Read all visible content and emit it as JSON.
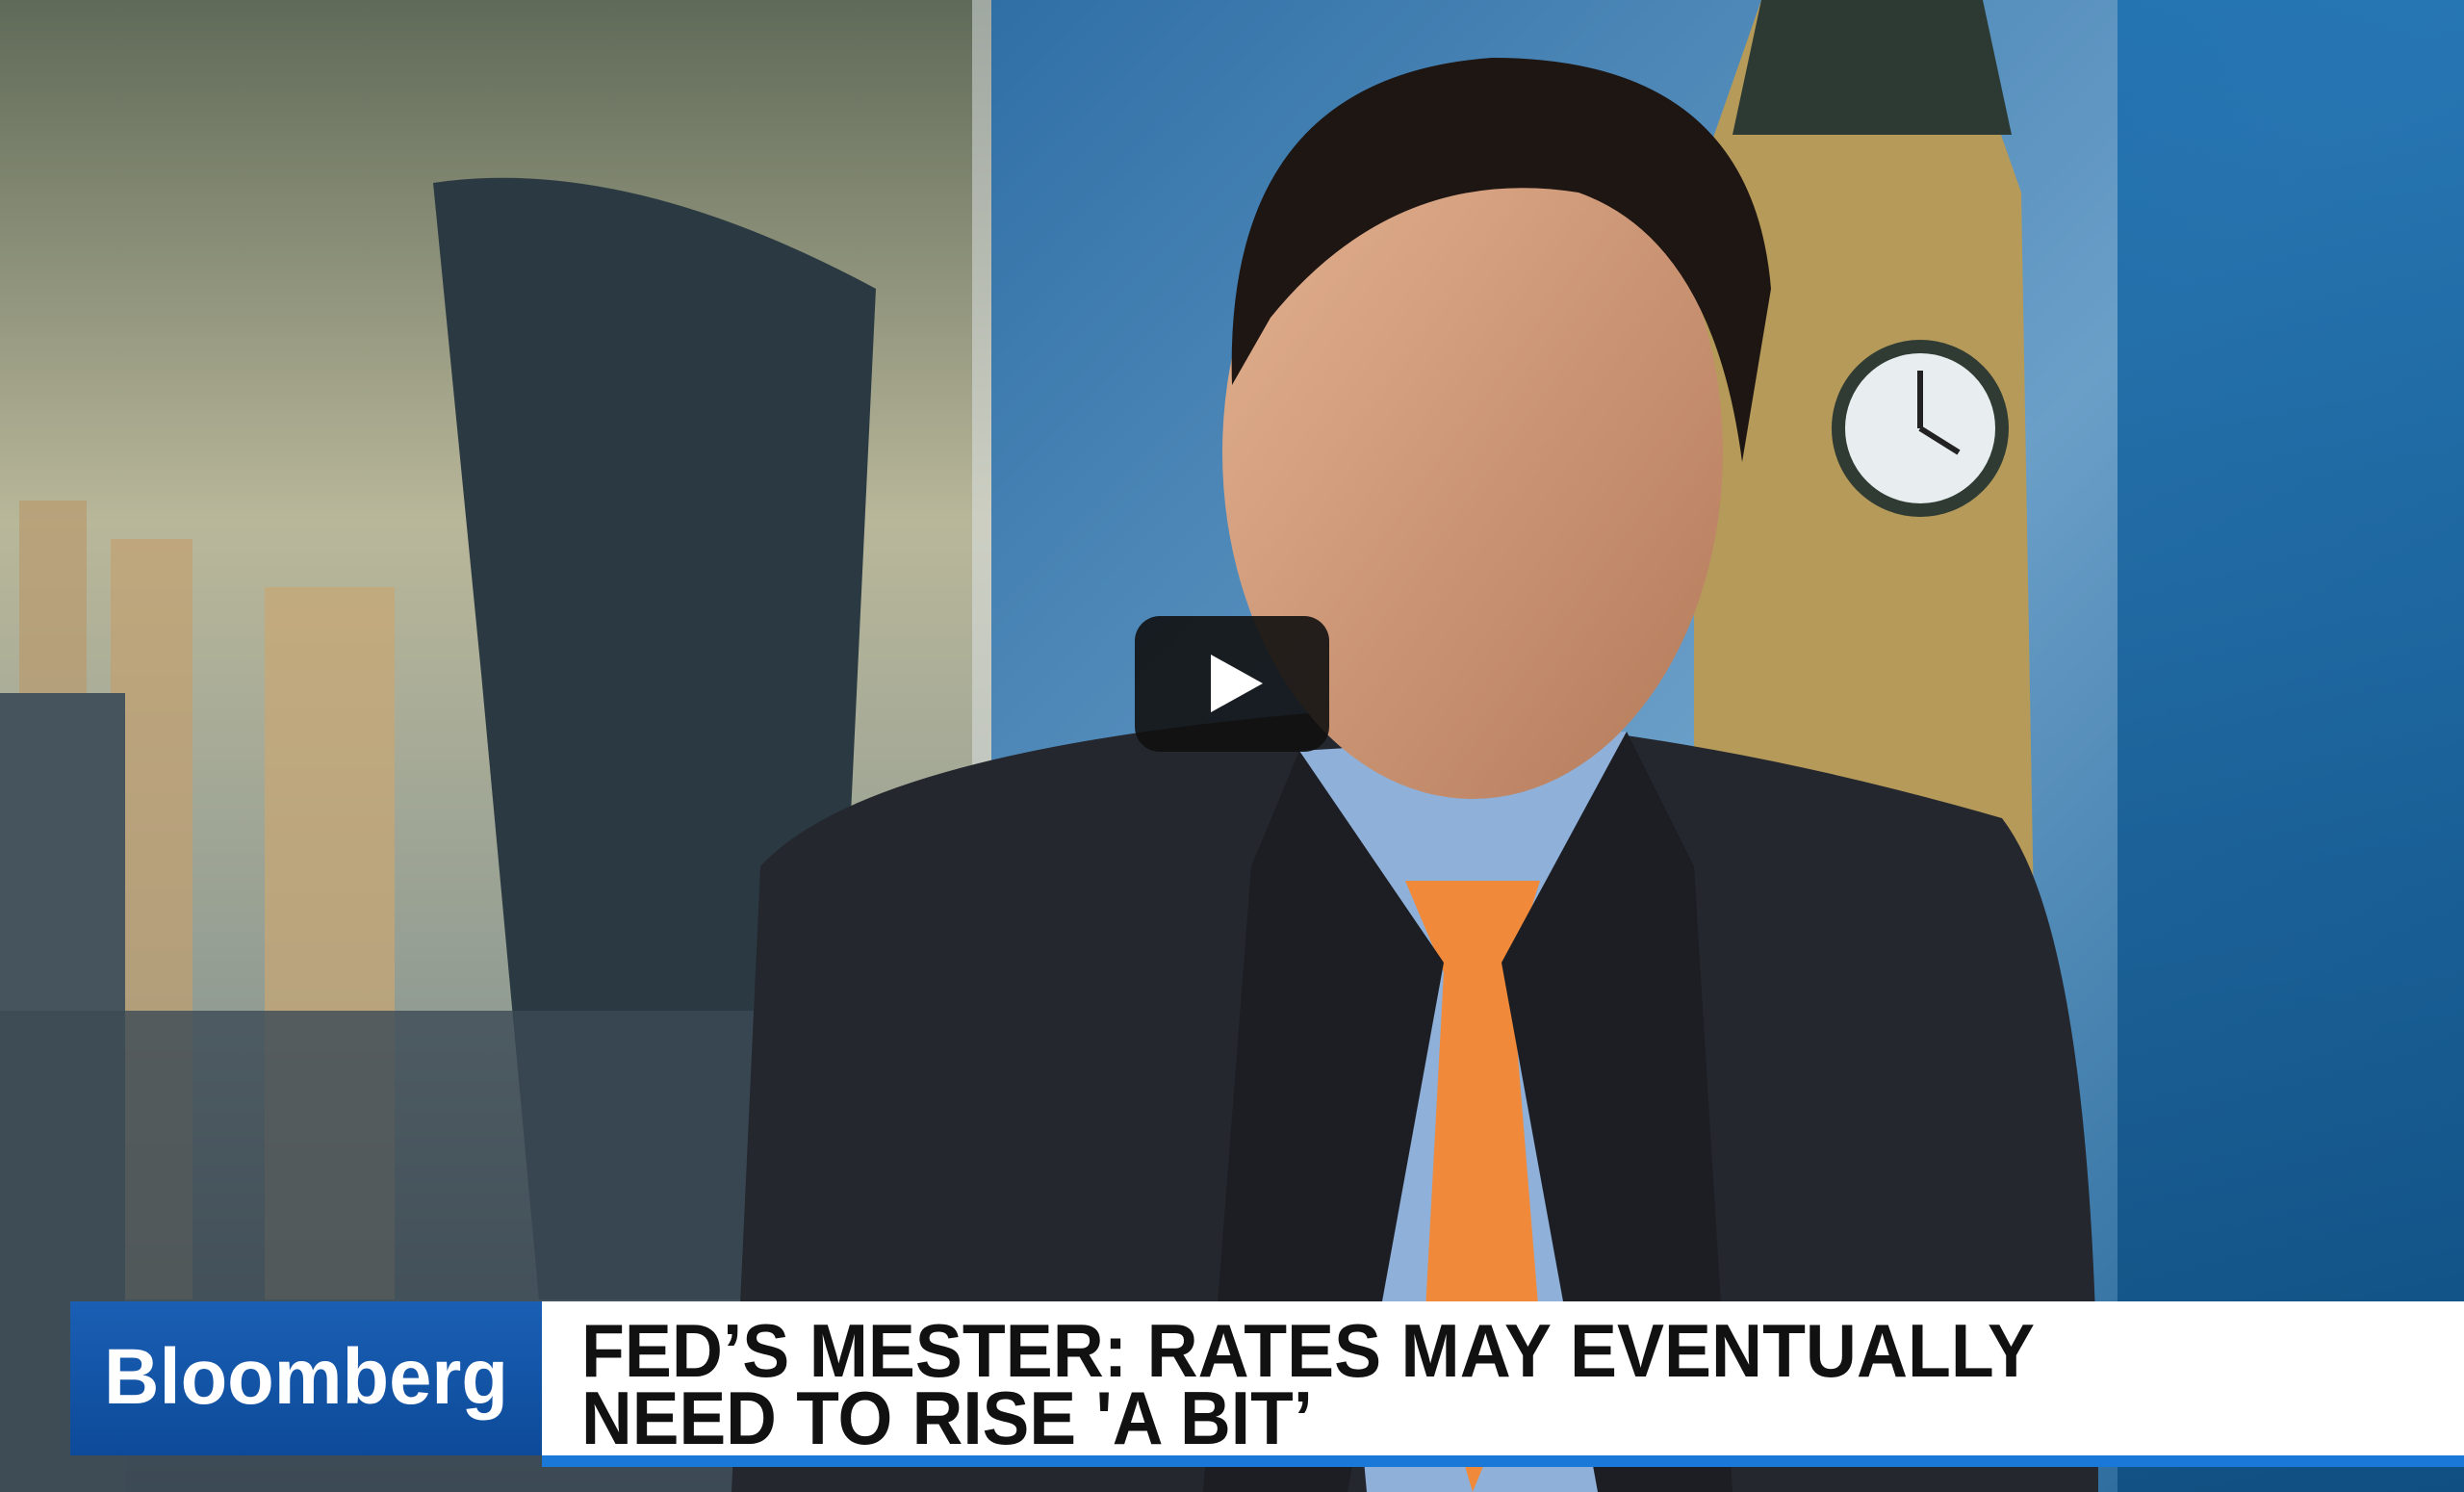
{
  "video": {
    "logo": "Bloomberg",
    "headline": [
      "FED’S MESTER: RATES MAY EVENTUALLY",
      "NEED TO RISE 'A BIT’"
    ]
  }
}
